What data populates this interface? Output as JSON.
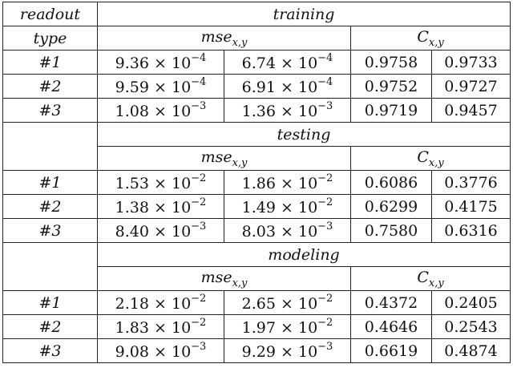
{
  "header": {
    "readout": "readout",
    "type": "type",
    "metric_mse": "mse",
    "metric_c": "C",
    "metric_sub": "x,y"
  },
  "sections": [
    {
      "label": "training",
      "rows": [
        {
          "id": "#1",
          "mse_x": "9.36 × 10",
          "mse_x_exp": "−4",
          "mse_y": "6.74 × 10",
          "mse_y_exp": "−4",
          "c_x": "0.9758",
          "c_y": "0.9733"
        },
        {
          "id": "#2",
          "mse_x": "9.59 × 10",
          "mse_x_exp": "−4",
          "mse_y": "6.91 × 10",
          "mse_y_exp": "−4",
          "c_x": "0.9752",
          "c_y": "0.9727"
        },
        {
          "id": "#3",
          "mse_x": "1.08 × 10",
          "mse_x_exp": "−3",
          "mse_y": "1.36 × 10",
          "mse_y_exp": "−3",
          "c_x": "0.9719",
          "c_y": "0.9457"
        }
      ]
    },
    {
      "label": "testing",
      "rows": [
        {
          "id": "#1",
          "mse_x": "1.53 × 10",
          "mse_x_exp": "−2",
          "mse_y": "1.86 × 10",
          "mse_y_exp": "−2",
          "c_x": "0.6086",
          "c_y": "0.3776"
        },
        {
          "id": "#2",
          "mse_x": "1.38 × 10",
          "mse_x_exp": "−2",
          "mse_y": "1.49 × 10",
          "mse_y_exp": "−2",
          "c_x": "0.6299",
          "c_y": "0.4175"
        },
        {
          "id": "#3",
          "mse_x": "8.40 × 10",
          "mse_x_exp": "−3",
          "mse_y": "8.03 × 10",
          "mse_y_exp": "−3",
          "c_x": "0.7580",
          "c_y": "0.6316"
        }
      ]
    },
    {
      "label": "modeling",
      "rows": [
        {
          "id": "#1",
          "mse_x": "2.18 × 10",
          "mse_x_exp": "−2",
          "mse_y": "2.65 × 10",
          "mse_y_exp": "−2",
          "c_x": "0.4372",
          "c_y": "0.2405"
        },
        {
          "id": "#2",
          "mse_x": "1.83 × 10",
          "mse_x_exp": "−2",
          "mse_y": "1.97 × 10",
          "mse_y_exp": "−2",
          "c_x": "0.4646",
          "c_y": "0.2543"
        },
        {
          "id": "#3",
          "mse_x": "9.08 × 10",
          "mse_x_exp": "−3",
          "mse_y": "9.29 × 10",
          "mse_y_exp": "−3",
          "c_x": "0.6619",
          "c_y": "0.4874"
        }
      ]
    }
  ]
}
